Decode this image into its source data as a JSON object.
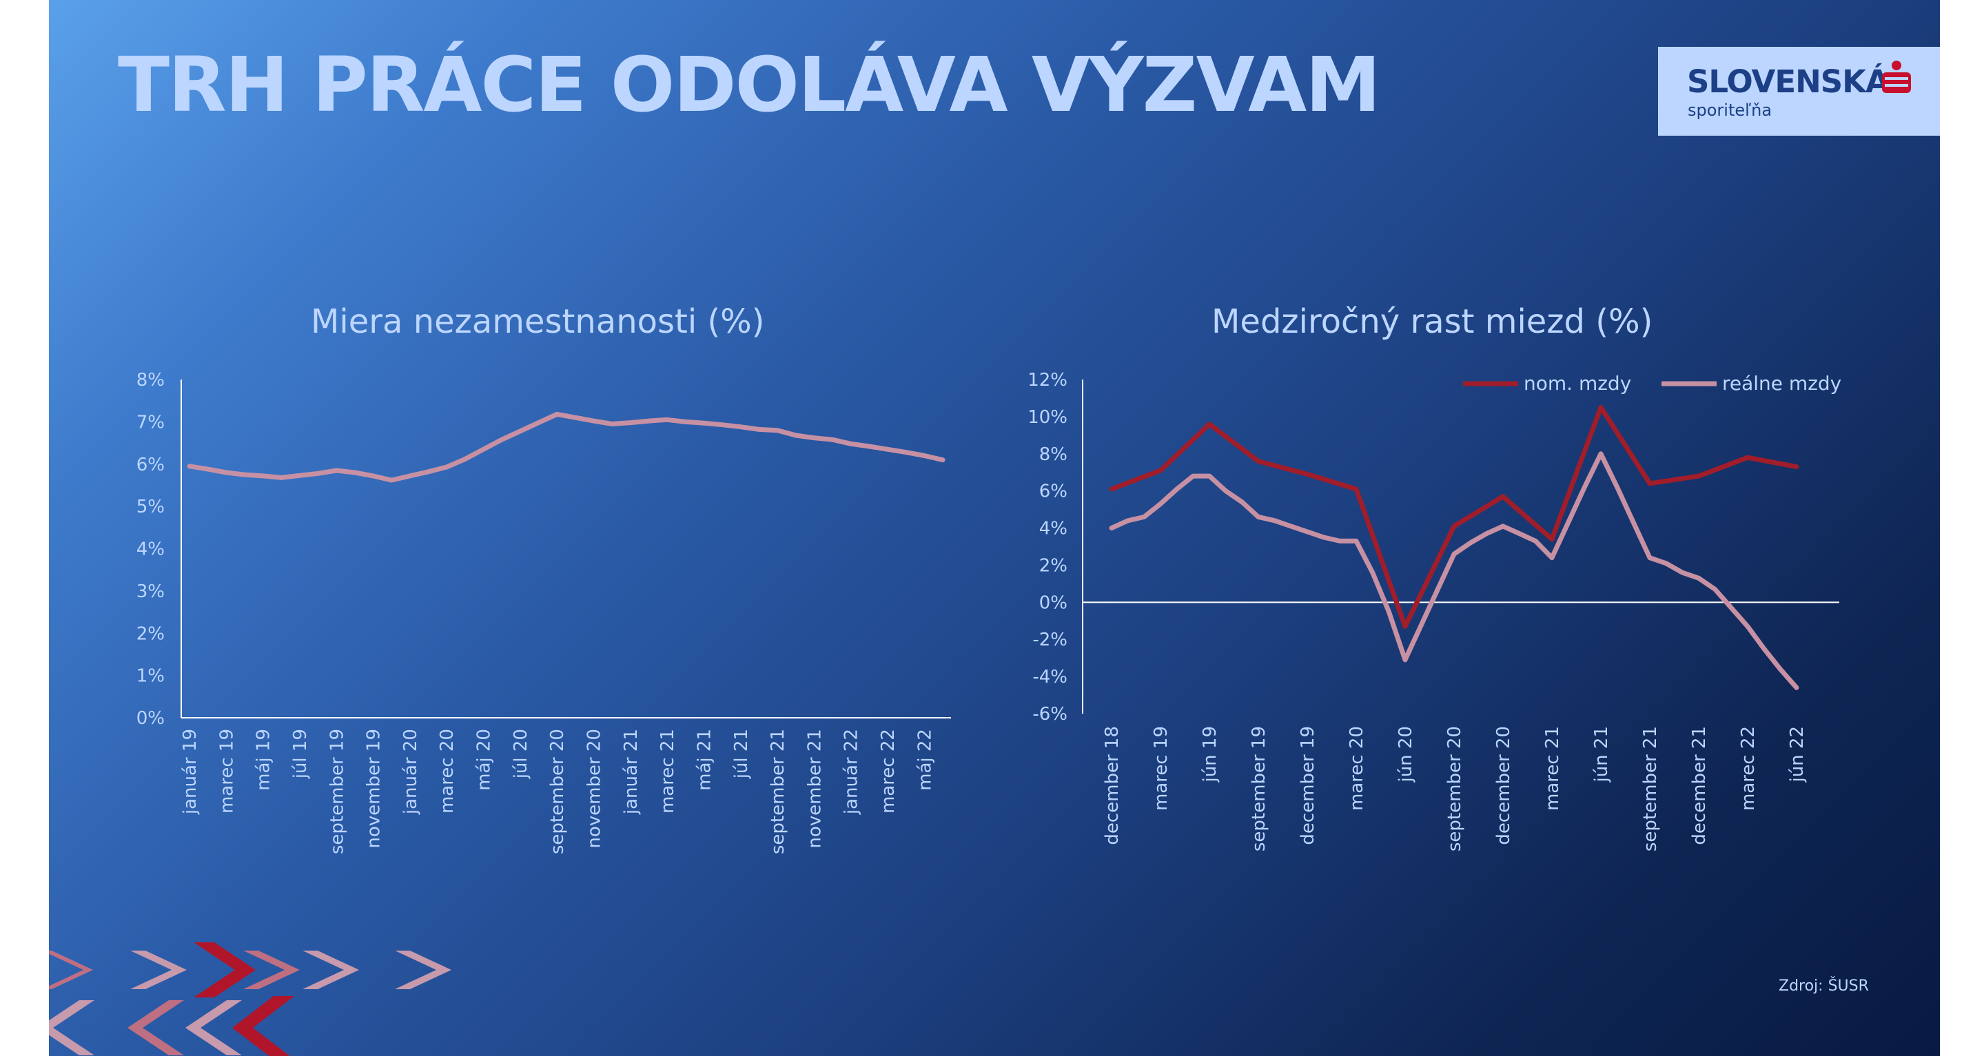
{
  "slide": {
    "title": "TRH PRÁCE ODOLÁVA VÝZVAM",
    "source": "Zdroj: ŠUSR"
  },
  "logo": {
    "name": "SLOVENSKÁ",
    "subtitle": "sporiteľňa",
    "colors": {
      "background": "#bcd6ff",
      "text": "#1d3f86",
      "mark": "#c8102e"
    }
  },
  "colors": {
    "title": "#bcd6ff",
    "axis": "#ffffff",
    "nominal": "#a11d2a",
    "real": "#c791a3",
    "unemployment": "#c791a3"
  },
  "chart_data": [
    {
      "type": "line",
      "title": "Miera nezamestnanosti (%)",
      "xlabel": "",
      "ylabel": "",
      "ylim": [
        0,
        8
      ],
      "yticks": [
        "0%",
        "1%",
        "2%",
        "3%",
        "4%",
        "5%",
        "6%",
        "7%",
        "8%"
      ],
      "x": [
        "január 19",
        "február 19",
        "marec 19",
        "apríl 19",
        "máj 19",
        "jún 19",
        "júl 19",
        "august 19",
        "september 19",
        "október 19",
        "november 19",
        "december 19",
        "január 20",
        "február 20",
        "marec 20",
        "apríl 20",
        "máj 20",
        "jún 20",
        "júl 20",
        "august 20",
        "september 20",
        "október 20",
        "november 20",
        "december 20",
        "január 21",
        "február 21",
        "marec 21",
        "apríl 21",
        "máj 21",
        "jún 21",
        "júl 21",
        "august 21",
        "september 21",
        "október 21",
        "november 21",
        "december 21",
        "január 22",
        "február 22",
        "marec 22",
        "apríl 22",
        "máj 22",
        "jún 22"
      ],
      "xticks": [
        "január 19",
        "marec 19",
        "máj 19",
        "júl 19",
        "september 19",
        "november 19",
        "január 20",
        "marec 20",
        "máj 20",
        "júl 20",
        "september 20",
        "november 20",
        "január 21",
        "marec 21",
        "máj 21",
        "júl 21",
        "september 21",
        "november 21",
        "január 22",
        "marec 22",
        "máj 22"
      ],
      "series": [
        {
          "name": "Miera nezamestnanosti",
          "values": [
            5.95,
            5.88,
            5.8,
            5.75,
            5.72,
            5.68,
            5.73,
            5.78,
            5.85,
            5.8,
            5.72,
            5.62,
            5.72,
            5.82,
            5.93,
            6.12,
            6.35,
            6.58,
            6.78,
            6.98,
            7.18,
            7.1,
            7.02,
            6.95,
            6.98,
            7.02,
            7.05,
            7.0,
            6.97,
            6.93,
            6.88,
            6.82,
            6.8,
            6.68,
            6.62,
            6.58,
            6.48,
            6.42,
            6.35,
            6.28,
            6.2,
            6.1
          ]
        }
      ]
    },
    {
      "type": "line",
      "title": "Medziročný rast miezd (%)",
      "xlabel": "",
      "ylabel": "",
      "ylim": [
        -6,
        12
      ],
      "yticks": [
        "-6%",
        "-4%",
        "-2%",
        "0%",
        "2%",
        "4%",
        "6%",
        "8%",
        "10%",
        "12%"
      ],
      "x": [
        "december 18",
        "január 19",
        "február 19",
        "marec 19",
        "apríl 19",
        "máj 19",
        "jún 19",
        "júl 19",
        "august 19",
        "september 19",
        "október 19",
        "november 19",
        "december 19",
        "január 20",
        "február 20",
        "marec 20",
        "apríl 20",
        "máj 20",
        "jún 20",
        "júl 20",
        "august 20",
        "september 20",
        "október 20",
        "november 20",
        "december 20",
        "január 21",
        "február 21",
        "marec 21",
        "apríl 21",
        "máj 21",
        "jún 21",
        "júl 21",
        "august 21",
        "september 21",
        "október 21",
        "november 21",
        "december 21",
        "január 22",
        "február 22",
        "marec 22",
        "apríl 22",
        "máj 22",
        "jún 22"
      ],
      "xticks": [
        "december 18",
        "marec 19",
        "jún 19",
        "september 19",
        "december 19",
        "marec 20",
        "jún 20",
        "september 20",
        "december 20",
        "marec 21",
        "jún 21",
        "september 21",
        "december 21",
        "marec 22",
        "jún 22"
      ],
      "legend": {
        "position": "top-right"
      },
      "series": [
        {
          "name": "nom. mzdy",
          "points": [
            [
              0,
              6.1
            ],
            [
              3,
              7.1
            ],
            [
              6,
              9.6
            ],
            [
              9,
              7.6
            ],
            [
              12,
              6.9
            ],
            [
              15,
              6.1
            ],
            [
              18,
              -1.3
            ],
            [
              21,
              4.1
            ],
            [
              24,
              5.7
            ],
            [
              27,
              3.4
            ],
            [
              30,
              10.5
            ],
            [
              33,
              6.4
            ],
            [
              36,
              6.8
            ],
            [
              39,
              7.8
            ],
            [
              42,
              7.3
            ]
          ]
        },
        {
          "name": "reálne mzdy",
          "points": [
            [
              0,
              4.0
            ],
            [
              1,
              4.4
            ],
            [
              2,
              4.6
            ],
            [
              3,
              5.3
            ],
            [
              4,
              6.1
            ],
            [
              5,
              6.8
            ],
            [
              6,
              6.8
            ],
            [
              7,
              6.0
            ],
            [
              8,
              5.4
            ],
            [
              9,
              4.6
            ],
            [
              10,
              4.4
            ],
            [
              11,
              4.1
            ],
            [
              12,
              3.8
            ],
            [
              13,
              3.5
            ],
            [
              14,
              3.3
            ],
            [
              15,
              3.3
            ],
            [
              16,
              1.6
            ],
            [
              17,
              -0.5
            ],
            [
              18,
              -3.1
            ],
            [
              19,
              -1.2
            ],
            [
              20,
              0.7
            ],
            [
              21,
              2.6
            ],
            [
              22,
              3.2
            ],
            [
              23,
              3.7
            ],
            [
              24,
              4.1
            ],
            [
              25,
              3.7
            ],
            [
              26,
              3.3
            ],
            [
              27,
              2.4
            ],
            [
              28,
              4.3
            ],
            [
              29,
              6.2
            ],
            [
              30,
              8.0
            ],
            [
              31,
              6.2
            ],
            [
              32,
              4.3
            ],
            [
              33,
              2.4
            ],
            [
              34,
              2.1
            ],
            [
              35,
              1.6
            ],
            [
              36,
              1.3
            ],
            [
              37,
              0.7
            ],
            [
              38,
              -0.3
            ],
            [
              39,
              -1.3
            ],
            [
              40,
              -2.5
            ],
            [
              41,
              -3.6
            ],
            [
              42,
              -4.6
            ]
          ]
        }
      ]
    }
  ]
}
